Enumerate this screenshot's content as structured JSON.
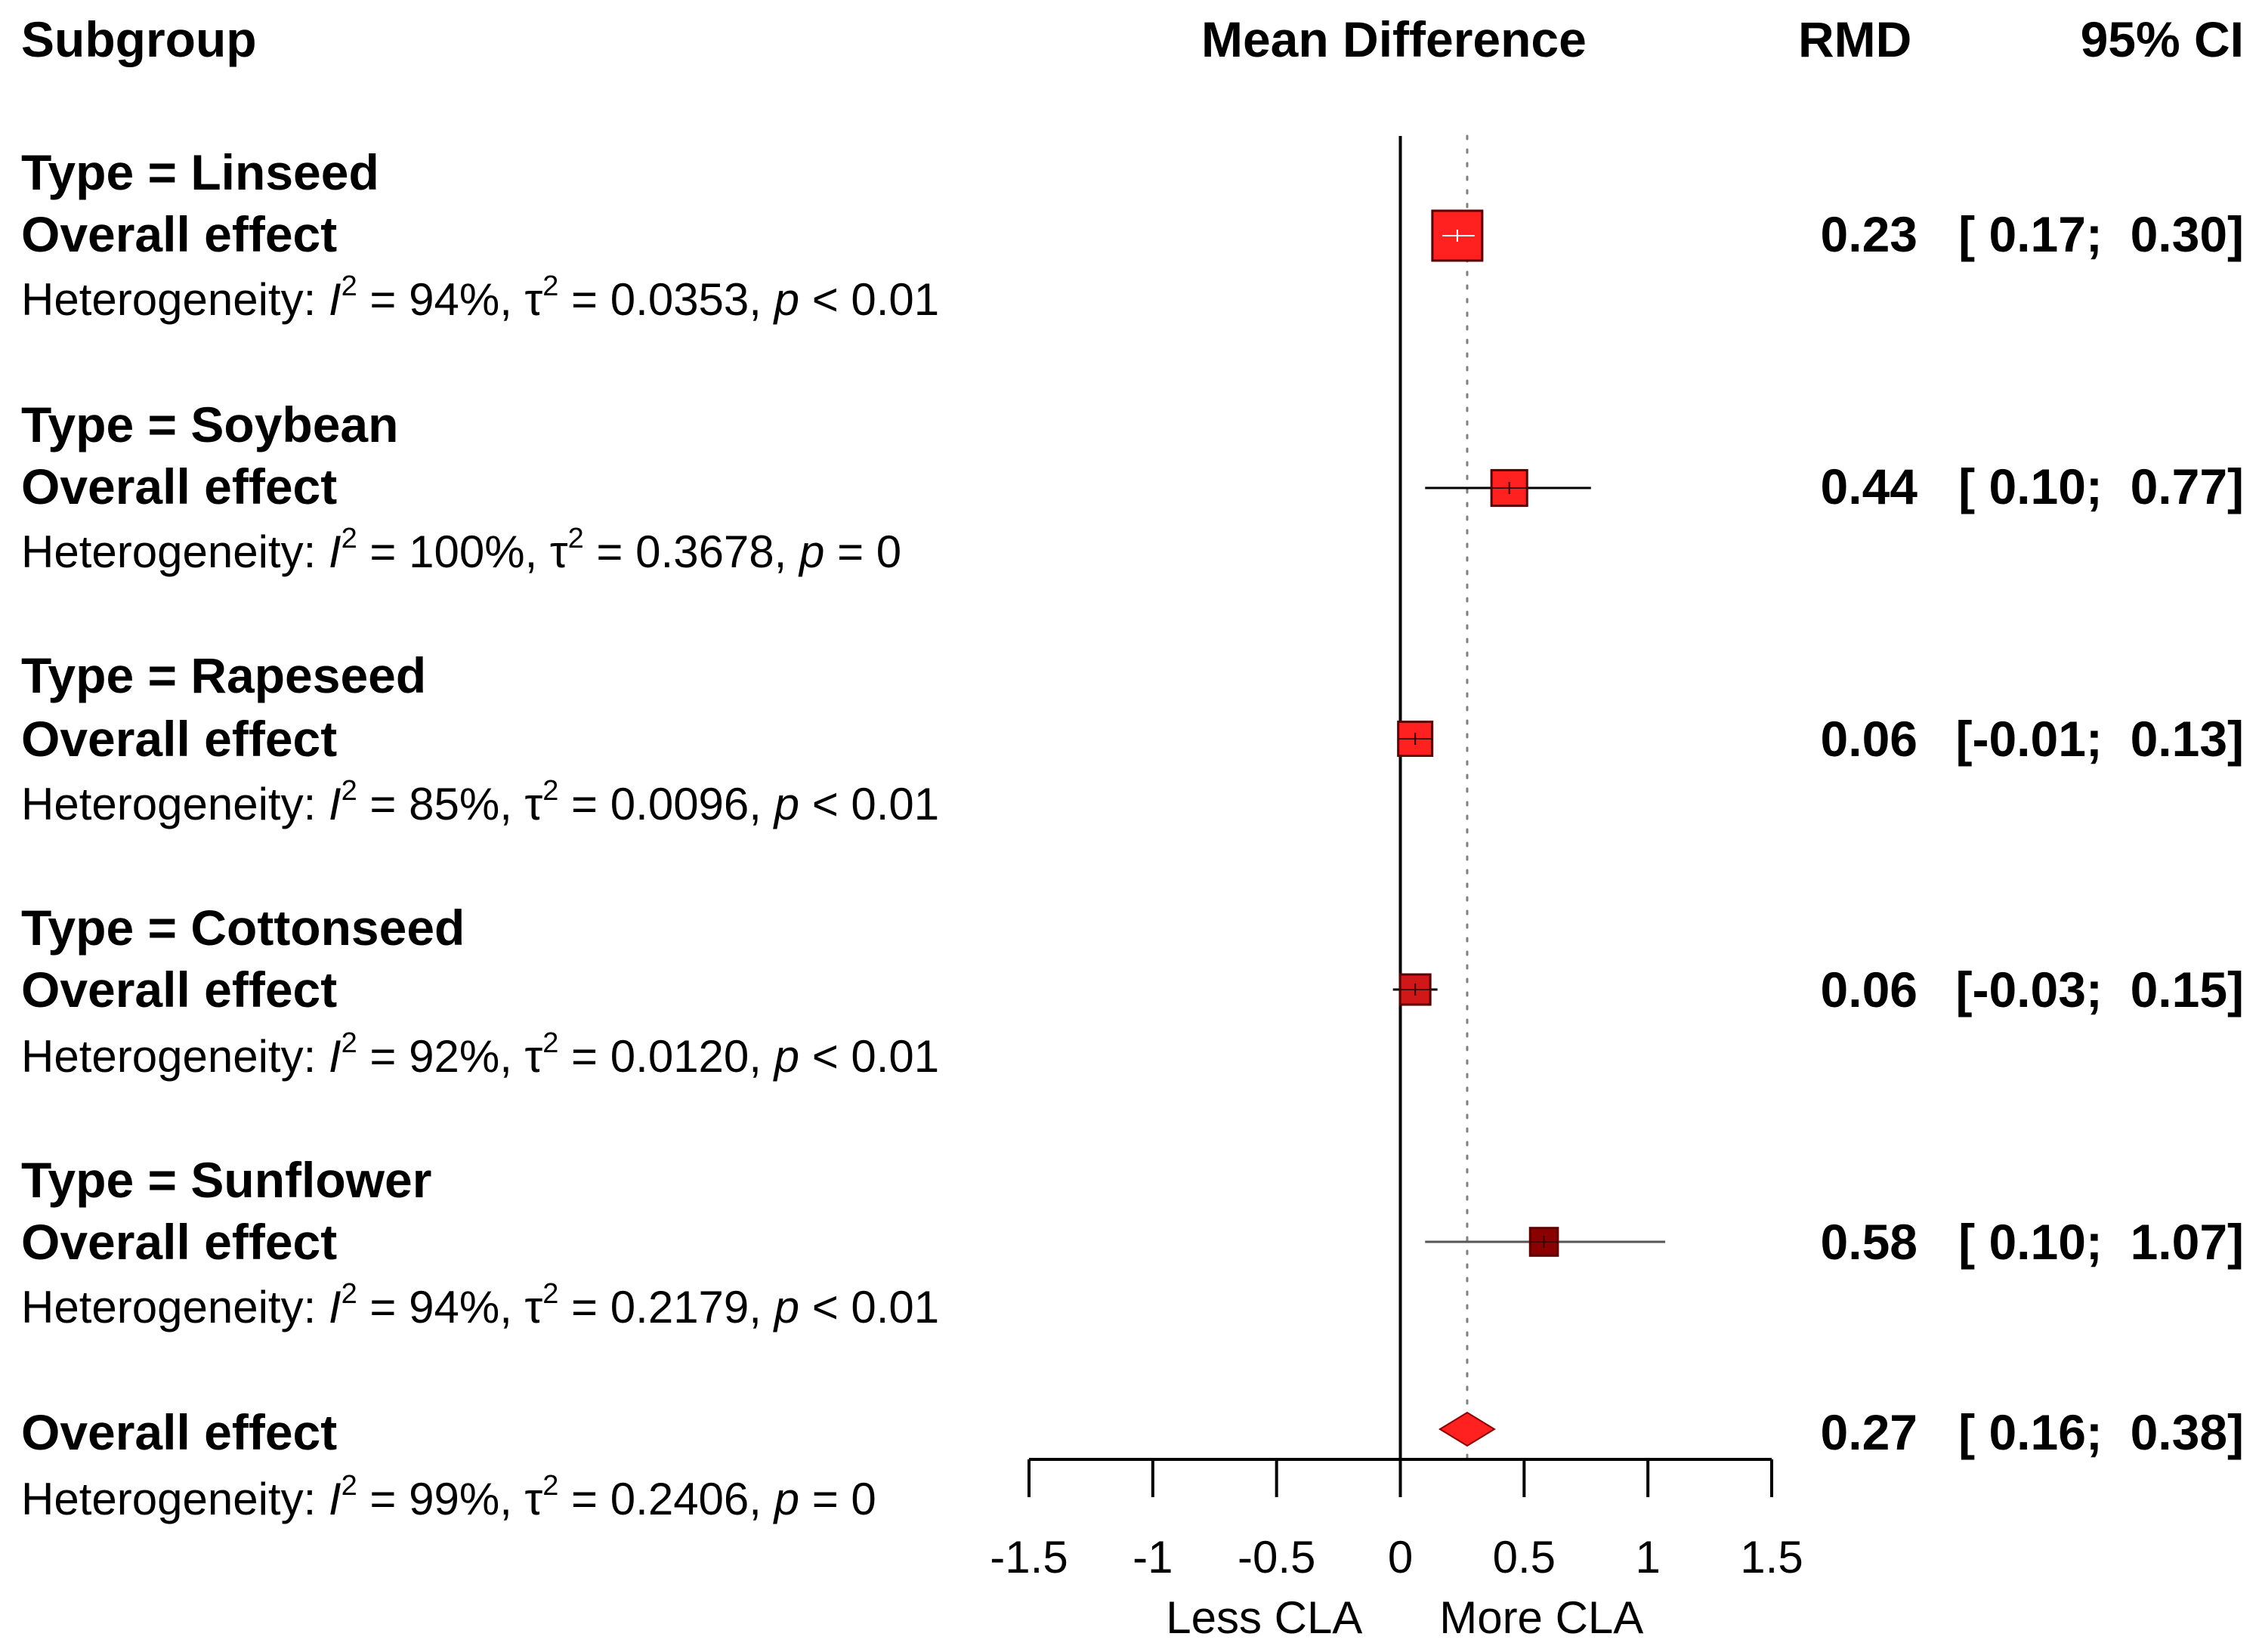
{
  "headers": {
    "subgroup": "Subgroup",
    "effect": "Mean Difference",
    "rmd": "RMD",
    "ci": "95% CI"
  },
  "subgroups": [
    {
      "title": "Type = Linseed",
      "effect_label": "Overall effect",
      "het_i2": "94%",
      "het_tau2": "0.0353",
      "het_p": "< 0.01",
      "rmd": "0.23",
      "ci": "[ 0.17;  0.30]"
    },
    {
      "title": "Type = Soybean",
      "effect_label": "Overall effect",
      "het_i2": "100%",
      "het_tau2": "0.3678",
      "het_p": "= 0",
      "rmd": "0.44",
      "ci": "[ 0.10;  0.77]"
    },
    {
      "title": "Type = Rapeseed",
      "effect_label": "Overall effect",
      "het_i2": "85%",
      "het_tau2": "0.0096",
      "het_p": "< 0.01",
      "rmd": "0.06",
      "ci": "[-0.01;  0.13]"
    },
    {
      "title": "Type = Cottonseed",
      "effect_label": "Overall effect",
      "het_i2": "92%",
      "het_tau2": "0.0120",
      "het_p": "< 0.01",
      "rmd": "0.06",
      "ci": "[-0.03;  0.15]"
    },
    {
      "title": "Type = Sunflower",
      "effect_label": "Overall effect",
      "het_i2": "94%",
      "het_tau2": "0.2179",
      "het_p": "< 0.01",
      "rmd": "0.58",
      "ci": "[ 0.10;  1.07]"
    }
  ],
  "overall": {
    "effect_label": "Overall effect",
    "het_i2": "99%",
    "het_tau2": "0.2406",
    "het_p": "= 0",
    "rmd": "0.27",
    "ci": "[ 0.16;  0.38]"
  },
  "het_prefix": "Heterogeneity: ",
  "axis_labels": {
    "left": "Less CLA",
    "right": "More CLA"
  },
  "colors": {
    "marker": "#ff2020",
    "marker_dark": "#8b0000",
    "line": "#000000"
  },
  "chart_data": {
    "type": "forest",
    "title": "Mean Difference",
    "xlabel_left": "Less CLA",
    "xlabel_right": "More CLA",
    "xlim": [
      -1.5,
      1.5
    ],
    "ticks": [
      -1.5,
      -1,
      -0.5,
      0,
      0.5,
      1,
      1.5
    ],
    "tick_labels": [
      "-1.5",
      "-1",
      "-0.5",
      "0",
      "0.5",
      "1",
      "1.5"
    ],
    "reference_line": 0,
    "overall_line": 0.27,
    "series": [
      {
        "name": "Linseed",
        "estimate": 0.23,
        "lower": 0.17,
        "upper": 0.3,
        "weight": 1.0,
        "shape": "square"
      },
      {
        "name": "Soybean",
        "estimate": 0.44,
        "lower": 0.1,
        "upper": 0.77,
        "weight": 0.55,
        "shape": "square"
      },
      {
        "name": "Rapeseed",
        "estimate": 0.06,
        "lower": -0.01,
        "upper": 0.13,
        "weight": 0.5,
        "shape": "square"
      },
      {
        "name": "Cottonseed",
        "estimate": 0.06,
        "lower": -0.03,
        "upper": 0.15,
        "weight": 0.38,
        "shape": "square"
      },
      {
        "name": "Sunflower",
        "estimate": 0.58,
        "lower": 0.1,
        "upper": 1.07,
        "weight": 0.3,
        "shape": "square"
      },
      {
        "name": "Overall",
        "estimate": 0.27,
        "lower": 0.16,
        "upper": 0.38,
        "weight": 1.0,
        "shape": "diamond"
      }
    ]
  }
}
